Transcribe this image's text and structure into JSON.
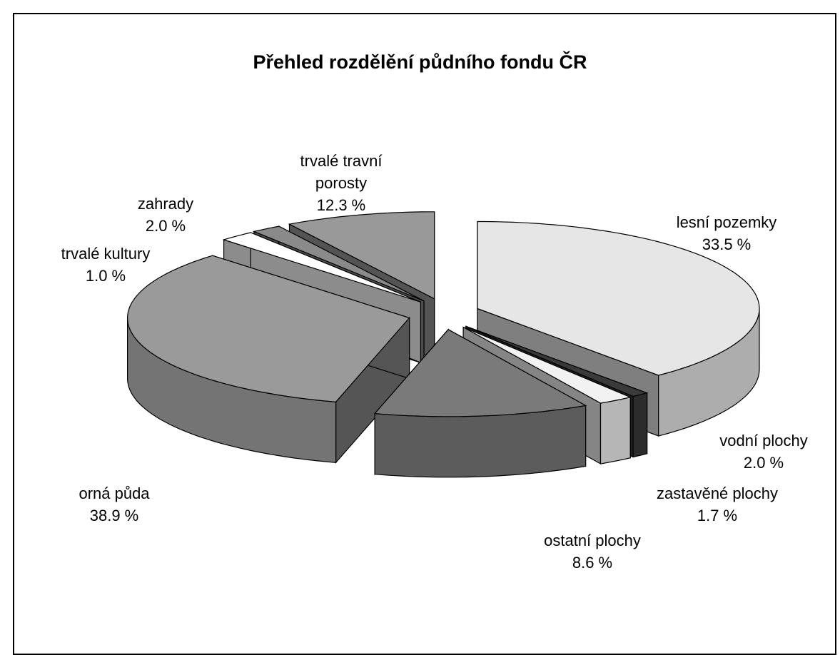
{
  "chart_data": {
    "type": "pie3d",
    "title": "Přehled rozdělění půdního fondu ČR",
    "categories": [
      "orná půda",
      "trvalé kultury",
      "zahrady",
      "trvalé travní porosty",
      "lesní pozemky",
      "vodní plochy",
      "zastavěné plochy",
      "ostatní plochy"
    ],
    "values": [
      38.9,
      1.0,
      2.0,
      12.3,
      33.5,
      2.0,
      1.7,
      8.6
    ],
    "value_labels": [
      "38.9 %",
      "1.0 %",
      "2.0 %",
      "12.3 %",
      "33.5 %",
      "2.0 %",
      "1.7 %",
      "8.6 %"
    ],
    "colors": [
      "#e6e6e6",
      "#3a3a3a",
      "#f2f2f2",
      "#7a7a7a",
      "#9a9a9a",
      "#ffffff",
      "#8a8a8a",
      "#999999"
    ]
  }
}
